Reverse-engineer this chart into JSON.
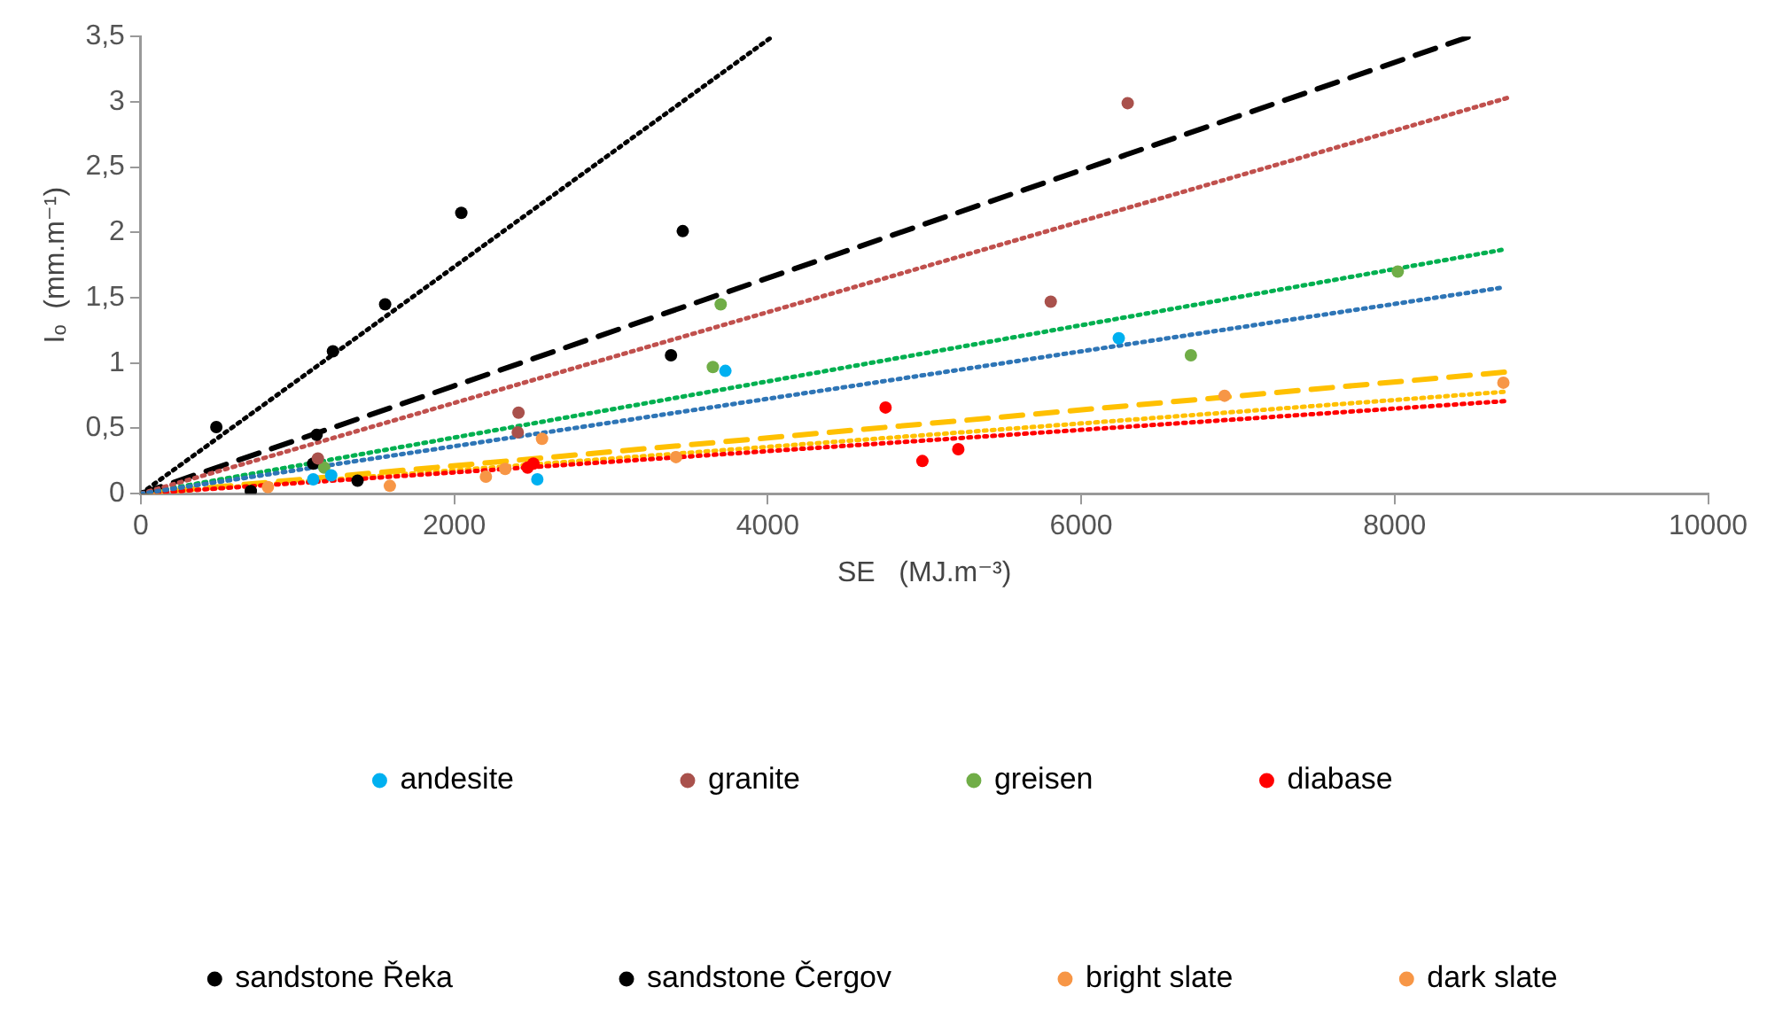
{
  "chart_data": {
    "type": "scatter",
    "xlabel": "SE   (MJ.m⁻³)",
    "ylabel": "Iₒ  (mm.m⁻¹)",
    "xlim": [
      0,
      10000
    ],
    "xticks": [
      0,
      2000,
      4000,
      6000,
      8000,
      10000
    ],
    "ylim": [
      0,
      3.5
    ],
    "yticks": [
      0,
      {
        "value": 0.5,
        "label": "0,5"
      },
      1,
      {
        "value": 1.5,
        "label": "1,5"
      },
      2,
      {
        "value": 2.5,
        "label": "2,5"
      },
      3,
      {
        "value": 3.5,
        "label": "3,5"
      }
    ],
    "grid": false,
    "legend": "bottom",
    "series": [
      {
        "name": "andesite",
        "type": "scatter",
        "color": "#00b0f0",
        "x": [
          1100,
          1215,
          2530,
          3730,
          6240
        ],
        "values": [
          0.11,
          0.14,
          0.11,
          0.94,
          1.19
        ]
      },
      {
        "name": "granite",
        "type": "scatter",
        "color": "#a9514c",
        "x": [
          1130,
          2405,
          2410,
          5806,
          6297
        ],
        "values": [
          0.27,
          0.47,
          0.62,
          1.47,
          2.99
        ]
      },
      {
        "name": "greisen",
        "type": "scatter",
        "color": "#70ad47",
        "x": [
          1170,
          3650,
          3700,
          6700,
          8020
        ],
        "values": [
          0.2,
          0.97,
          1.45,
          1.06,
          1.7
        ]
      },
      {
        "name": "diabase",
        "type": "scatter",
        "color": "#ff0000",
        "x": [
          2468,
          2505,
          4752,
          4987,
          5216
        ],
        "values": [
          0.2,
          0.23,
          0.66,
          0.25,
          0.34
        ]
      },
      {
        "name": "sandstone Řeka",
        "type": "scatter",
        "color": "#000000",
        "x": [
          482,
          1226,
          1559,
          2045
        ],
        "values": [
          0.51,
          1.09,
          1.45,
          2.15
        ]
      },
      {
        "name": "sandstone Čergov",
        "type": "scatter",
        "color": "#000000",
        "x": [
          702,
          1100,
          1122,
          1383,
          3383,
          3458
        ],
        "values": [
          0.02,
          0.23,
          0.45,
          0.1,
          1.06,
          2.01
        ]
      },
      {
        "name": "bright slate",
        "type": "scatter",
        "color": "#f79646",
        "x": [
          1589,
          2202,
          2325,
          8694
        ],
        "values": [
          0.06,
          0.13,
          0.19,
          0.85
        ]
      },
      {
        "name": "dark slate",
        "type": "scatter",
        "color": "#f79646",
        "x": [
          811,
          2560,
          3415,
          6915
        ],
        "values": [
          0.05,
          0.42,
          0.28,
          0.75
        ]
      },
      {
        "type": "line",
        "color": "#2e75b6",
        "line_style": "dotted",
        "x": [
          0,
          8700
        ],
        "values": [
          0,
          1.58
        ]
      },
      {
        "type": "line",
        "color": "#c0504d",
        "line_style": "dotted",
        "x": [
          0,
          8720
        ],
        "values": [
          0,
          3.03
        ]
      },
      {
        "type": "line",
        "color": "#00b050",
        "line_style": "dotted",
        "x": [
          0,
          8700
        ],
        "values": [
          0,
          1.87
        ]
      },
      {
        "type": "line",
        "color": "#ff0000",
        "line_style": "dotted",
        "x": [
          0,
          8720
        ],
        "values": [
          0,
          0.71
        ]
      },
      {
        "type": "line",
        "color": "#000000",
        "line_style": "dotted",
        "x": [
          0,
          4030
        ],
        "values": [
          0,
          3.5
        ]
      },
      {
        "type": "line",
        "color": "#000000",
        "line_style": "dashed",
        "x": [
          0,
          8480
        ],
        "values": [
          0,
          3.5
        ]
      },
      {
        "type": "line",
        "color": "#ffc000",
        "line_style": "dotted",
        "x": [
          0,
          8700
        ],
        "values": [
          0,
          0.78
        ]
      },
      {
        "type": "line",
        "color": "#ffc000",
        "line_style": "dashed",
        "x": [
          0,
          8700
        ],
        "values": [
          0,
          0.93
        ]
      }
    ]
  }
}
